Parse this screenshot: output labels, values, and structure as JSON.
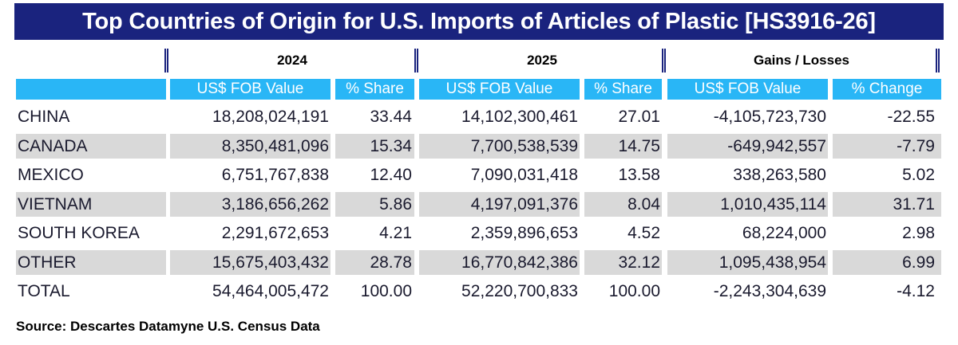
{
  "title": "Top Countries of Origin for U.S. Imports of  Articles of Plastic [HS3916-26]",
  "source": "Source: Descartes Datamyne U.S. Census Data",
  "colors": {
    "title_bg": "#1a237e",
    "header_bg": "#29b6f6",
    "row_shade": "#d9d9d9"
  },
  "chart_data": {
    "type": "table",
    "title": "Top Countries of Origin for U.S. Imports of  Articles of Plastic [HS3916-26]",
    "column_groups": [
      "2024",
      "2025",
      "Gains / Losses"
    ],
    "columns": [
      "US$ FOB Value",
      "% Share",
      "US$ FOB Value",
      "% Share",
      "US$ FOB Value",
      "% Change"
    ],
    "rows": [
      {
        "country": "CHINA",
        "values": [
          "18,208,024,191",
          "33.44",
          "14,102,300,461",
          "27.01",
          "-4,105,723,730",
          "-22.55"
        ]
      },
      {
        "country": "CANADA",
        "values": [
          "8,350,481,096",
          "15.34",
          "7,700,538,539",
          "14.75",
          "-649,942,557",
          "-7.79"
        ]
      },
      {
        "country": "MEXICO",
        "values": [
          "6,751,767,838",
          "12.40",
          "7,090,031,418",
          "13.58",
          "338,263,580",
          "5.02"
        ]
      },
      {
        "country": "VIETNAM",
        "values": [
          "3,186,656,262",
          "5.86",
          "4,197,091,376",
          "8.04",
          "1,010,435,114",
          "31.71"
        ]
      },
      {
        "country": "SOUTH KOREA",
        "values": [
          "2,291,672,653",
          "4.21",
          "2,359,896,653",
          "4.52",
          "68,224,000",
          "2.98"
        ]
      },
      {
        "country": "OTHER",
        "values": [
          "15,675,403,432",
          "28.78",
          "16,770,842,386",
          "32.12",
          "1,095,438,954",
          "6.99"
        ]
      },
      {
        "country": "TOTAL",
        "values": [
          "54,464,005,472",
          "100.00",
          "52,220,700,833",
          "100.00",
          "-2,243,304,639",
          "-4.12"
        ]
      }
    ]
  }
}
